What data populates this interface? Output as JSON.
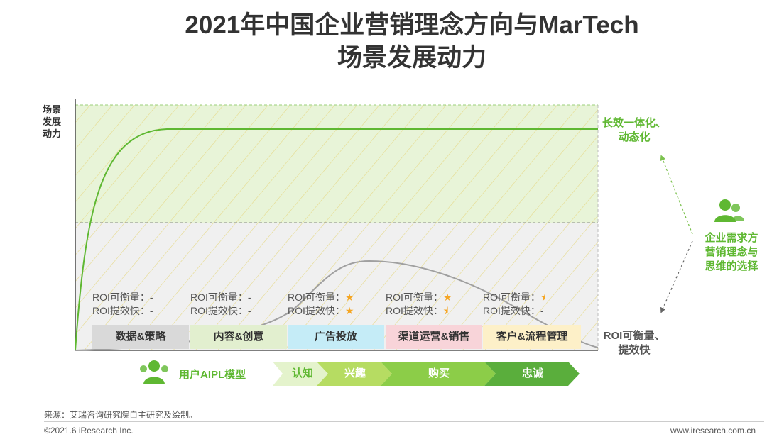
{
  "title_line1": "2021年中国企业营销理念方向与MarTech",
  "title_line2": "场景发展动力",
  "y_axis_label": [
    "场景",
    "发展",
    "动力"
  ],
  "chart_data": {
    "type": "line",
    "series": [
      {
        "values": "curve rising steeply then plateauing (long-term integrated, dynamic)",
        "color": "#5fb832"
      },
      {
        "values": "bell-shaped curve peaking around 广告投放 / 渠道运营&销售",
        "color": "#a0a0a0"
      }
    ],
    "categories": [
      "数据&策略",
      "内容&创意",
      "广告投放",
      "渠道运营&销售",
      "客户&流程管理"
    ],
    "category_colors": [
      "#d9d9d9",
      "#e2efcf",
      "#c5ecf7",
      "#f8d4d9",
      "#fdf0c8"
    ],
    "roi": [
      {
        "line1": "ROI可衡量：-",
        "line2": "ROI提效快：-",
        "star1": "",
        "star2": ""
      },
      {
        "line1": "ROI可衡量：-",
        "line2": "ROI提效快：-",
        "star1": "",
        "star2": ""
      },
      {
        "line1": "ROI可衡量：",
        "line2": "ROI提效快：",
        "star1": "★",
        "star2": "★"
      },
      {
        "line1": "ROI可衡量：",
        "line2": "ROI提效快：",
        "star1": "★",
        "star2": "⯨"
      },
      {
        "line1": "ROI可衡量：",
        "line2": "ROI提效快：-",
        "star1": "⯨",
        "star2": ""
      }
    ]
  },
  "right_top_label": [
    "长效一体化、",
    "动态化"
  ],
  "right_bottom_label": [
    "ROI可衡量、",
    "提效快"
  ],
  "right_mid_label": [
    "企业需求方",
    "营销理念与",
    "思维的选择"
  ],
  "aipl": {
    "model_label": "用户AIPL模型",
    "steps": [
      "认知",
      "兴趣",
      "购买",
      "忠诚"
    ],
    "step_colors": [
      "#e4f3cc",
      "#b6dc62",
      "#8ccd48",
      "#5aae3c"
    ],
    "step_text_colors": [
      "#5fb832",
      "#ffffff",
      "#ffffff",
      "#ffffff"
    ]
  },
  "source": "来源：艾瑞咨询研究院自主研究及绘制。",
  "copyright": "©2021.6 iResearch Inc.",
  "website": "www.iresearch.com.cn",
  "colors": {
    "accent_green": "#5fb832",
    "grey_curve": "#a0a0a0"
  }
}
